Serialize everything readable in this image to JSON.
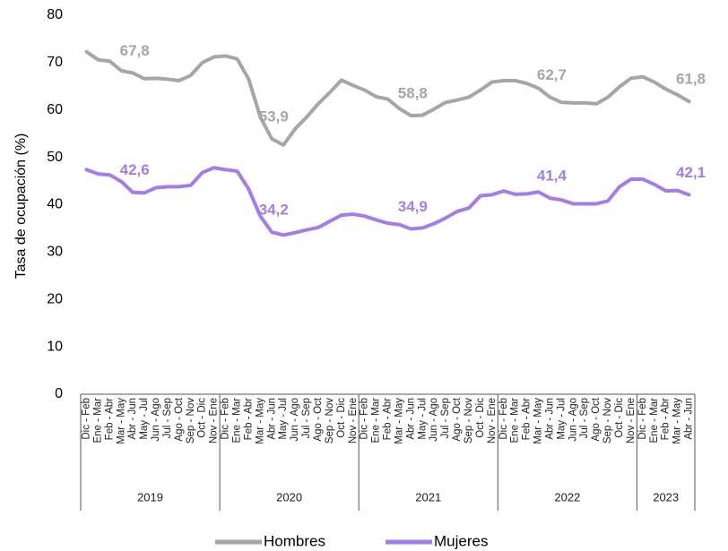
{
  "chart_data": {
    "type": "line",
    "y_label": "Tasa de ocupación (%)",
    "ylim": [
      0,
      80
    ],
    "yticks": [
      0,
      10,
      20,
      30,
      40,
      50,
      60,
      70,
      80
    ],
    "grid": false,
    "legend": "bottom",
    "category_groups": [
      {
        "name": "2019",
        "categories": [
          "Dic - Feb",
          "Ene - Mar",
          "Feb - Abr",
          "Mar - May",
          "Abr - Jun",
          "May - Jul",
          "Jun - Ago",
          "Jul - Sep",
          "Ago - Oct",
          "Sep - Nov",
          "Oct - Dic",
          "Nov - Ene"
        ]
      },
      {
        "name": "2020",
        "categories": [
          "Dic - Feb",
          "Ene - Mar",
          "Feb - Abr",
          "Mar - May",
          "Abr - Jun",
          "May - Jul",
          "Jun - Ago",
          "Jul - Sep",
          "Ago - Oct",
          "Sep - Nov",
          "Oct - Dic",
          "Nov - Ene"
        ]
      },
      {
        "name": "2021",
        "categories": [
          "Dic - Feb",
          "Ene - Mar",
          "Feb - Abr",
          "Mar - May",
          "Abr - Jun",
          "May - Jul",
          "Jun - Ago",
          "Jul - Sep",
          "Ago - Oct",
          "Sep - Nov",
          "Oct - Dic",
          "Nov - Ene"
        ]
      },
      {
        "name": "2022",
        "categories": [
          "Dic - Feb",
          "Ene - Mar",
          "Feb - Abr",
          "Mar - May",
          "Abr - Jun",
          "May - Jul",
          "Jun - Ago",
          "Jul - Sep",
          "Ago - Oct",
          "Sep - Nov",
          "Oct - Dic",
          "Nov - Ene"
        ]
      },
      {
        "name": "2023",
        "categories": [
          "Dic - Feb",
          "Ene - Mar",
          "Feb - Abr",
          "Mar - May",
          "Abr - Jun"
        ]
      }
    ],
    "series": [
      {
        "name": "Hombres",
        "color": "#a6a6a6",
        "values": [
          72.3,
          70.6,
          70.3,
          68.3,
          67.8,
          66.6,
          66.7,
          66.5,
          66.2,
          67.3,
          70.0,
          71.2,
          71.4,
          70.8,
          66.5,
          58.5,
          53.9,
          52.6,
          56.0,
          58.5,
          61.3,
          63.7,
          66.3,
          65.2,
          64.2,
          62.8,
          62.3,
          60.3,
          58.8,
          58.9,
          60.2,
          61.6,
          62.1,
          62.7,
          64.2,
          65.9,
          66.2,
          66.2,
          65.6,
          64.6,
          62.7,
          61.6,
          61.5,
          61.5,
          61.3,
          62.7,
          64.9,
          66.7,
          67.0,
          65.9,
          64.4,
          63.2,
          61.8
        ],
        "value_labels": [
          null,
          null,
          null,
          null,
          "67,8",
          null,
          null,
          null,
          null,
          null,
          null,
          null,
          null,
          null,
          null,
          null,
          "53,9",
          null,
          null,
          null,
          null,
          null,
          null,
          null,
          null,
          null,
          null,
          null,
          "58,8",
          null,
          null,
          null,
          null,
          null,
          null,
          null,
          null,
          null,
          null,
          null,
          "62,7",
          null,
          null,
          null,
          null,
          null,
          null,
          null,
          null,
          null,
          null,
          null,
          "61,8"
        ]
      },
      {
        "name": "Mujeres",
        "color": "#a47de6",
        "values": [
          47.4,
          46.5,
          46.3,
          44.9,
          42.6,
          42.5,
          43.6,
          43.8,
          43.8,
          44.1,
          46.8,
          47.8,
          47.4,
          47.1,
          43.3,
          37.6,
          34.2,
          33.6,
          34.1,
          34.7,
          35.2,
          36.5,
          37.8,
          38.0,
          37.6,
          36.8,
          36.1,
          35.8,
          34.9,
          35.1,
          36.0,
          37.2,
          38.6,
          39.3,
          41.9,
          42.1,
          42.9,
          42.2,
          42.3,
          42.7,
          41.4,
          41.0,
          40.2,
          40.2,
          40.2,
          40.8,
          43.8,
          45.4,
          45.4,
          44.3,
          42.9,
          43.0,
          42.1
        ],
        "value_labels": [
          null,
          null,
          null,
          null,
          "42,6",
          null,
          null,
          null,
          null,
          null,
          null,
          null,
          null,
          null,
          null,
          null,
          "34,2",
          null,
          null,
          null,
          null,
          null,
          null,
          null,
          null,
          null,
          null,
          null,
          "34,9",
          null,
          null,
          null,
          null,
          null,
          null,
          null,
          null,
          null,
          null,
          null,
          "41,4",
          null,
          null,
          null,
          null,
          null,
          null,
          null,
          null,
          null,
          null,
          null,
          "42,1"
        ]
      }
    ]
  }
}
